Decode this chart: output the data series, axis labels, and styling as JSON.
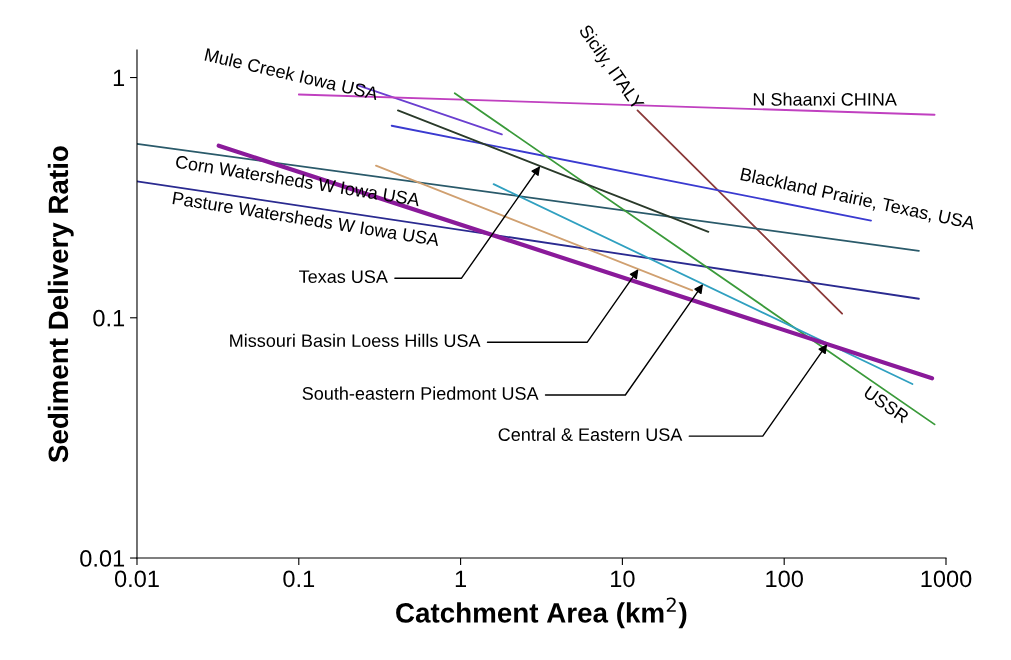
{
  "chart_data": {
    "type": "line",
    "xlabel": "Catchment Area (km$^{2}$)",
    "ylabel": "Sediment Delivery Ratio",
    "log": "xy",
    "xlim": [
      0.01,
      1000
    ],
    "ylim": [
      0.01,
      1.3
    ],
    "xticks": [
      0.01,
      0.1,
      1,
      10,
      100,
      1000
    ],
    "yticks": [
      0.01,
      0.1,
      1
    ],
    "grid": false,
    "legend": false,
    "marker": "none",
    "line_style": "solid",
    "series": [
      {
        "name": "Mule Creek Iowa USA",
        "color": "#6a3fd0",
        "x": [
          0.23,
          1.8
        ],
        "values": [
          0.93,
          0.58
        ]
      },
      {
        "name": "Sicily, ITALY",
        "color": "#8b3a3a",
        "x": [
          12.4,
          228
        ],
        "values": [
          0.73,
          0.104
        ]
      },
      {
        "name": "N Shaanxi CHINA",
        "color": "#c040c0",
        "x": [
          0.1,
          850
        ],
        "values": [
          0.85,
          0.7
        ]
      },
      {
        "name": "Blackland Prairie, Texas, USA",
        "color": "#3a3ad0",
        "x": [
          0.375,
          344
        ],
        "values": [
          0.63,
          0.254
        ]
      },
      {
        "name": "Corn Watersheds W Iowa USA",
        "color": "#2a5a6a",
        "x": [
          0.01,
          680
        ],
        "values": [
          0.53,
          0.19
        ]
      },
      {
        "name": "Pasture Watersheds W Iowa USA",
        "color": "#2a2a90",
        "x": [
          0.01,
          680
        ],
        "values": [
          0.37,
          0.12
        ]
      },
      {
        "name": "USSR",
        "color": "#3a9a3a",
        "x": [
          0.92,
          850
        ],
        "values": [
          0.86,
          0.036
        ]
      },
      {
        "name": "Texas USA",
        "color": "#2a3a2a",
        "x": [
          0.41,
          34
        ],
        "values": [
          0.73,
          0.228
        ]
      },
      {
        "name": "Missouri Basin Loess Hills USA",
        "color": "#d0a070",
        "x": [
          0.3,
          27
        ],
        "values": [
          0.43,
          0.13
        ]
      },
      {
        "name": "South-eastern Piedmont USA",
        "color": "#30a0c0",
        "x": [
          1.6,
          620
        ],
        "values": [
          0.36,
          0.053
        ]
      },
      {
        "name": "Central & Eastern USA",
        "color": "#8a1a9a",
        "x": [
          0.032,
          820
        ],
        "values": [
          0.52,
          0.056
        ]
      }
    ]
  }
}
